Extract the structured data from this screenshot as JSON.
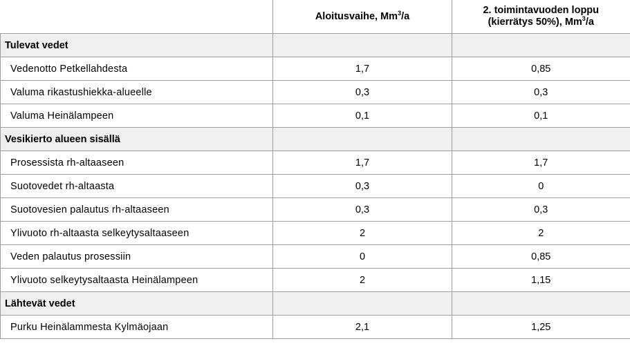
{
  "table": {
    "header": {
      "col1": "",
      "col2_text": "Aloitusvaihe, Mm",
      "col2_sup": "3",
      "col2_suffix": "/a",
      "col3_line1": "2. toimintavuoden loppu",
      "col3_line2_text": "(kierrätys 50%), Mm",
      "col3_line2_sup": "3",
      "col3_line2_suffix": "/a"
    },
    "sections": [
      {
        "title": "Tulevat vedet",
        "rows": [
          {
            "label": "Vedenotto Petkellahdesta",
            "start": "1,7",
            "year2": "0,85"
          },
          {
            "label": "Valuma rikastushiekka-alueelle",
            "start": "0,3",
            "year2": "0,3"
          },
          {
            "label": "Valuma Heinälampeen",
            "start": "0,1",
            "year2": "0,1"
          }
        ]
      },
      {
        "title": "Vesikierto alueen sisällä",
        "rows": [
          {
            "label": "Prosessista rh-altaaseen",
            "start": "1,7",
            "year2": "1,7"
          },
          {
            "label": "Suotovedet rh-altaasta",
            "start": "0,3",
            "year2": "0"
          },
          {
            "label": "Suotovesien palautus rh-altaaseen",
            "start": "0,3",
            "year2": "0,3"
          },
          {
            "label": "Ylivuoto rh-altaasta selkeytysaltaaseen",
            "start": "2",
            "year2": "2"
          },
          {
            "label": "Veden palautus prosessiin",
            "start": "0",
            "year2": "0,85"
          },
          {
            "label": "Ylivuoto selkeytysaltaasta Heinälampeen",
            "start": "2",
            "year2": "1,15"
          }
        ]
      },
      {
        "title": "Lähtevät vedet",
        "rows": [
          {
            "label": "Purku Heinälammesta Kylmäojaan",
            "start": "2,1",
            "year2": "1,25"
          }
        ]
      }
    ]
  }
}
